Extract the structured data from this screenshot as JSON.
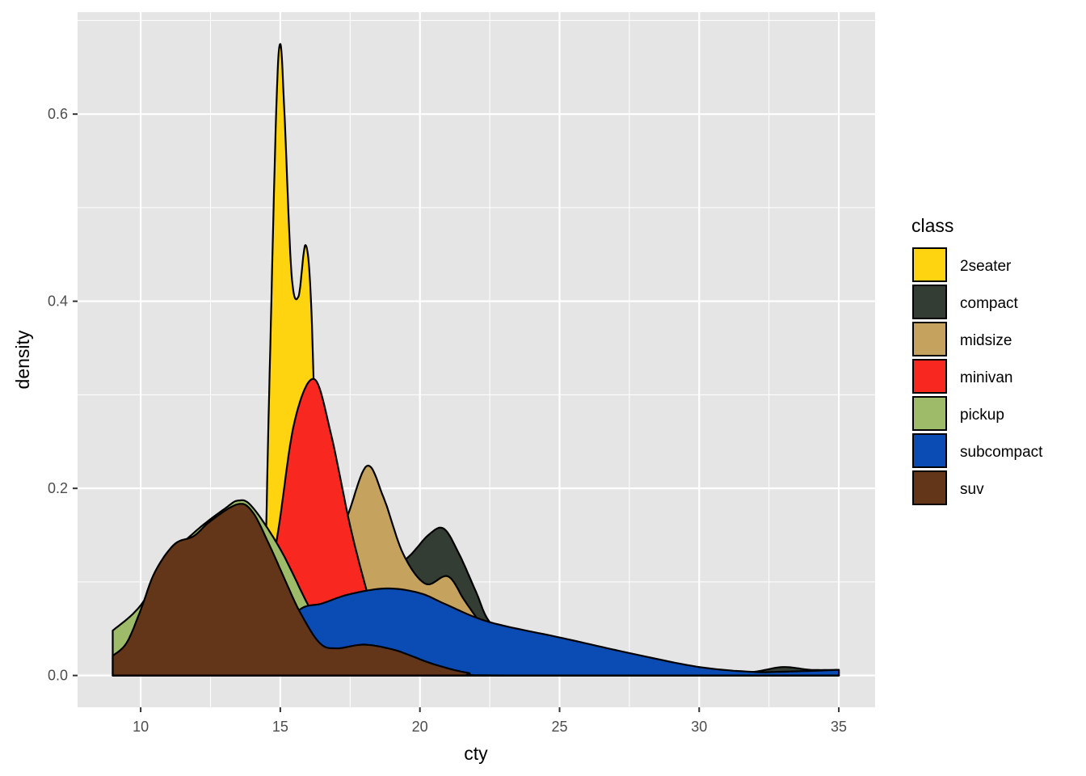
{
  "chart_data": {
    "type": "area",
    "subtype": "density",
    "title": "",
    "xlabel": "cty",
    "ylabel": "density",
    "xlim": [
      7.74,
      36.3
    ],
    "ylim": [
      -0.034,
      0.709
    ],
    "xticks": [
      10,
      15,
      20,
      25,
      30,
      35
    ],
    "xtick_labels": [
      "10",
      "15",
      "20",
      "25",
      "30",
      "35"
    ],
    "yticks": [
      0.0,
      0.2,
      0.4,
      0.6
    ],
    "ytick_labels": [
      "0.0",
      "0.2",
      "0.4",
      "0.6"
    ],
    "grid": true,
    "legend": {
      "title": "class",
      "position": "right"
    },
    "series": [
      {
        "name": "2seater",
        "color": "#FED411",
        "points": [
          [
            9,
            0
          ],
          [
            14.2,
            0
          ],
          [
            14.4,
            0.05
          ],
          [
            14.6,
            0.3
          ],
          [
            14.85,
            0.6
          ],
          [
            15.0,
            0.675
          ],
          [
            15.15,
            0.6
          ],
          [
            15.4,
            0.43
          ],
          [
            15.65,
            0.405
          ],
          [
            15.9,
            0.46
          ],
          [
            16.1,
            0.4
          ],
          [
            16.3,
            0.2
          ],
          [
            16.5,
            0.04
          ],
          [
            16.7,
            0
          ],
          [
            35,
            0
          ]
        ]
      },
      {
        "name": "compact",
        "color": "#343D34",
        "points": [
          [
            9,
            0
          ],
          [
            13,
            0
          ],
          [
            15,
            0.02
          ],
          [
            17,
            0.06
          ],
          [
            18.5,
            0.1
          ],
          [
            19.6,
            0.127
          ],
          [
            20.3,
            0.15
          ],
          [
            20.85,
            0.157
          ],
          [
            21.4,
            0.13
          ],
          [
            22,
            0.09
          ],
          [
            22.5,
            0.057
          ],
          [
            23.5,
            0.03
          ],
          [
            25,
            0.015
          ],
          [
            27,
            0.006
          ],
          [
            29,
            0.003
          ],
          [
            31,
            0.002
          ],
          [
            32,
            0.004
          ],
          [
            33,
            0.009
          ],
          [
            34,
            0.006
          ],
          [
            35,
            0.006
          ]
        ]
      },
      {
        "name": "midsize",
        "color": "#C6A25F",
        "points": [
          [
            9,
            0
          ],
          [
            13,
            0
          ],
          [
            14,
            0.01
          ],
          [
            15,
            0.04
          ],
          [
            16,
            0.09
          ],
          [
            16.8,
            0.13
          ],
          [
            17.4,
            0.17
          ],
          [
            18.1,
            0.224
          ],
          [
            18.7,
            0.19
          ],
          [
            19.4,
            0.13
          ],
          [
            20.2,
            0.098
          ],
          [
            21,
            0.106
          ],
          [
            21.6,
            0.08
          ],
          [
            22.3,
            0.05
          ],
          [
            23,
            0.02
          ],
          [
            24,
            0.005
          ],
          [
            25,
            0
          ],
          [
            35,
            0
          ]
        ]
      },
      {
        "name": "minivan",
        "color": "#F8271F",
        "points": [
          [
            9,
            0
          ],
          [
            13.5,
            0
          ],
          [
            14.2,
            0.03
          ],
          [
            14.9,
            0.15
          ],
          [
            15.5,
            0.27
          ],
          [
            16.2,
            0.317
          ],
          [
            16.8,
            0.26
          ],
          [
            17.5,
            0.16
          ],
          [
            18.1,
            0.09
          ],
          [
            18.6,
            0.04
          ],
          [
            19.2,
            0.01
          ],
          [
            20,
            0
          ],
          [
            35,
            0
          ]
        ]
      },
      {
        "name": "pickup",
        "color": "#9DBB68",
        "points": [
          [
            9,
            0.048
          ],
          [
            10,
            0.075
          ],
          [
            11,
            0.125
          ],
          [
            12,
            0.155
          ],
          [
            13,
            0.178
          ],
          [
            13.5,
            0.187
          ],
          [
            14,
            0.18
          ],
          [
            15,
            0.135
          ],
          [
            16,
            0.075
          ],
          [
            17,
            0.02
          ],
          [
            18,
            0.004
          ],
          [
            19,
            0
          ],
          [
            35,
            0
          ]
        ]
      },
      {
        "name": "subcompact",
        "color": "#0A4BB4",
        "points": [
          [
            9,
            0
          ],
          [
            12,
            0
          ],
          [
            13.5,
            0.003
          ],
          [
            14.5,
            0.02
          ],
          [
            15.6,
            0.068
          ],
          [
            16.5,
            0.077
          ],
          [
            17.5,
            0.087
          ],
          [
            18.8,
            0.093
          ],
          [
            20,
            0.088
          ],
          [
            21,
            0.075
          ],
          [
            22.5,
            0.057
          ],
          [
            25.1,
            0.04
          ],
          [
            27.5,
            0.024
          ],
          [
            29.9,
            0.0095
          ],
          [
            31.8,
            0.004
          ],
          [
            33,
            0.004
          ],
          [
            35,
            0.006
          ]
        ]
      },
      {
        "name": "suv",
        "color": "#643619",
        "points": [
          [
            9,
            0.021
          ],
          [
            9.5,
            0.035
          ],
          [
            10,
            0.07
          ],
          [
            10.5,
            0.11
          ],
          [
            11.2,
            0.14
          ],
          [
            11.9,
            0.149
          ],
          [
            12.5,
            0.165
          ],
          [
            13.47,
            0.183
          ],
          [
            14,
            0.175
          ],
          [
            14.6,
            0.14
          ],
          [
            15.2,
            0.1
          ],
          [
            15.7,
            0.068
          ],
          [
            16.4,
            0.035
          ],
          [
            17,
            0.029
          ],
          [
            18,
            0.033
          ],
          [
            19,
            0.028
          ],
          [
            19.6,
            0.022
          ],
          [
            20.5,
            0.012
          ],
          [
            21.7,
            0.003
          ],
          [
            23,
            0
          ],
          [
            35,
            0
          ]
        ]
      }
    ]
  }
}
